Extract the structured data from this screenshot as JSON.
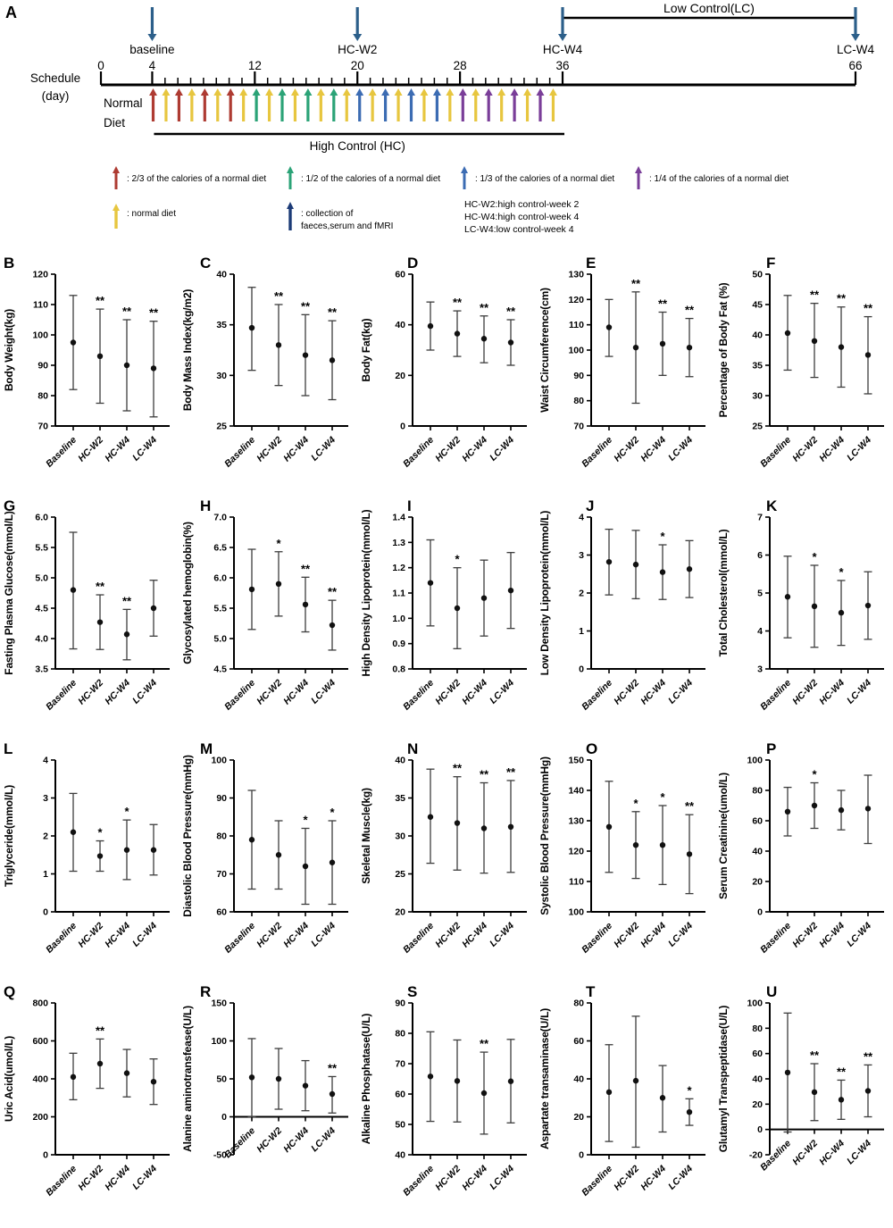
{
  "panel_a": {
    "letter": "A",
    "schedule_axis_label": [
      "Schedule",
      "(day)"
    ],
    "diet_row_label": [
      "Normal",
      "Diet"
    ],
    "axis_day_labels": [
      0,
      4,
      12,
      20,
      28,
      36,
      66
    ],
    "timepoints": [
      {
        "text": "baseline",
        "day": 4
      },
      {
        "text": "HC-W2",
        "day": 20
      },
      {
        "text": "HC-W4",
        "day": 36
      },
      {
        "text": "LC-W4",
        "day": 66
      }
    ],
    "collection_arrow_days": [
      4,
      20,
      36,
      66
    ],
    "low_control_span": {
      "label": "Low Control(LC)",
      "from_day": 36,
      "to_day": 66
    },
    "high_control_span": {
      "label": "High Control  (HC)",
      "from_day": 4,
      "to_day": 36
    },
    "week_arrow_colors": [
      "red",
      "green",
      "blue",
      "purple"
    ],
    "arrows_per_week": 4,
    "alternate_with": "yellow",
    "legend_row1": [
      {
        "color": "red",
        "label": ":  2/3 of the calories of a normal diet"
      },
      {
        "color": "green",
        "label": ":  1/2 of the calories of a normal diet"
      },
      {
        "color": "blue",
        "label": ":  1/3 of the calories of a normal diet"
      },
      {
        "color": "purple",
        "label": ":  1/4 of the calories of a normal diet"
      }
    ],
    "legend_row2": [
      {
        "color": "yellow",
        "lines": [
          ":  normal diet"
        ]
      },
      {
        "color": "navy",
        "lines": [
          ":  collection of",
          "faeces,serum and fMRI"
        ]
      }
    ],
    "abbreviations": [
      "HC-W2:high control-week 2",
      "HC-W4:high control-week 4",
      "LC-W4:low control-week 4"
    ]
  },
  "colors": {
    "red": "#ae3b32",
    "yellow": "#e7c63f",
    "green": "#2ba377",
    "blue": "#3c6cb3",
    "purple": "#7a3e99",
    "navy": "#1c3b77",
    "steel": "#2c5f8a",
    "error_bar": "#3d3d3d",
    "point": "#111111",
    "axis": "#000000"
  },
  "chart_data": {
    "type": "scatter",
    "legend_position": "none",
    "grid": false,
    "categories": [
      "Baseline",
      "HC-W2",
      "HC-W4",
      "LC-W4"
    ],
    "panels": [
      {
        "id": "B",
        "ylabel": "Body Weight(kg)",
        "ylim": [
          70,
          120
        ],
        "ystep": 10,
        "dec": 0,
        "points": [
          {
            "mean": 97.5,
            "lo": 82,
            "hi": 113,
            "sig": ""
          },
          {
            "mean": 93,
            "lo": 77.5,
            "hi": 108.5,
            "sig": "**"
          },
          {
            "mean": 90,
            "lo": 75,
            "hi": 105,
            "sig": "**"
          },
          {
            "mean": 89,
            "lo": 73,
            "hi": 104.5,
            "sig": "**"
          }
        ]
      },
      {
        "id": "C",
        "ylabel": "Body Mass Index(kg/m2)",
        "ylim": [
          25,
          40
        ],
        "ystep": 5,
        "dec": 0,
        "points": [
          {
            "mean": 34.7,
            "lo": 30.5,
            "hi": 38.7,
            "sig": ""
          },
          {
            "mean": 33,
            "lo": 29,
            "hi": 37,
            "sig": "**"
          },
          {
            "mean": 32,
            "lo": 28,
            "hi": 36,
            "sig": "**"
          },
          {
            "mean": 31.5,
            "lo": 27.6,
            "hi": 35.4,
            "sig": "**"
          }
        ]
      },
      {
        "id": "D",
        "ylabel": "Body Fat(kg)",
        "ylim": [
          0,
          60
        ],
        "ystep": 20,
        "dec": 0,
        "points": [
          {
            "mean": 39.5,
            "lo": 30,
            "hi": 49,
            "sig": ""
          },
          {
            "mean": 36.5,
            "lo": 27.5,
            "hi": 45.5,
            "sig": "**"
          },
          {
            "mean": 34.5,
            "lo": 25,
            "hi": 43.5,
            "sig": "**"
          },
          {
            "mean": 33,
            "lo": 24,
            "hi": 42,
            "sig": "**"
          }
        ]
      },
      {
        "id": "E",
        "ylabel": "Waist Circumference(cm)",
        "ylim": [
          70,
          130
        ],
        "ystep": 10,
        "dec": 0,
        "points": [
          {
            "mean": 109,
            "lo": 97.5,
            "hi": 120,
            "sig": ""
          },
          {
            "mean": 101,
            "lo": 79,
            "hi": 123,
            "sig": "**"
          },
          {
            "mean": 102.5,
            "lo": 90,
            "hi": 115,
            "sig": "**"
          },
          {
            "mean": 101,
            "lo": 89.5,
            "hi": 112.5,
            "sig": "**"
          }
        ]
      },
      {
        "id": "F",
        "ylabel": "Percentage of Body Fat (%)",
        "ylim": [
          25,
          50
        ],
        "ystep": 5,
        "dec": 0,
        "points": [
          {
            "mean": 40.3,
            "lo": 34.2,
            "hi": 46.5,
            "sig": ""
          },
          {
            "mean": 39,
            "lo": 33,
            "hi": 45.2,
            "sig": "**"
          },
          {
            "mean": 38,
            "lo": 31.4,
            "hi": 44.6,
            "sig": "**"
          },
          {
            "mean": 36.7,
            "lo": 30.3,
            "hi": 43,
            "sig": "**"
          }
        ]
      },
      {
        "id": "G",
        "ylabel": "Fasting Plasma Glucose(mmol/L)",
        "ylim": [
          3.5,
          6.0
        ],
        "ystep": 0.5,
        "dec": 1,
        "points": [
          {
            "mean": 4.8,
            "lo": 3.83,
            "hi": 5.75,
            "sig": ""
          },
          {
            "mean": 4.27,
            "lo": 3.82,
            "hi": 4.72,
            "sig": "**"
          },
          {
            "mean": 4.07,
            "lo": 3.65,
            "hi": 4.48,
            "sig": "**"
          },
          {
            "mean": 4.5,
            "lo": 4.04,
            "hi": 4.96,
            "sig": ""
          }
        ]
      },
      {
        "id": "H",
        "ylabel": "Glycosylated hemoglobin(%)",
        "ylim": [
          4.5,
          7.0
        ],
        "ystep": 0.5,
        "dec": 1,
        "points": [
          {
            "mean": 5.81,
            "lo": 5.15,
            "hi": 6.47,
            "sig": ""
          },
          {
            "mean": 5.9,
            "lo": 5.37,
            "hi": 6.43,
            "sig": "*"
          },
          {
            "mean": 5.56,
            "lo": 5.11,
            "hi": 6.01,
            "sig": "**"
          },
          {
            "mean": 5.22,
            "lo": 4.81,
            "hi": 5.63,
            "sig": "**"
          }
        ]
      },
      {
        "id": "I",
        "ylabel": "High Density Lipoprotein(mmol/L)",
        "ylim": [
          0.8,
          1.4
        ],
        "ystep": 0.1,
        "dec": 1,
        "points": [
          {
            "mean": 1.14,
            "lo": 0.97,
            "hi": 1.31,
            "sig": ""
          },
          {
            "mean": 1.04,
            "lo": 0.88,
            "hi": 1.2,
            "sig": "*"
          },
          {
            "mean": 1.08,
            "lo": 0.93,
            "hi": 1.23,
            "sig": ""
          },
          {
            "mean": 1.11,
            "lo": 0.96,
            "hi": 1.26,
            "sig": ""
          }
        ]
      },
      {
        "id": "J",
        "ylabel": "Low Density Lipoprotein(mmol/L)",
        "ylim": [
          0,
          4
        ],
        "ystep": 1,
        "dec": 0,
        "points": [
          {
            "mean": 2.82,
            "lo": 1.95,
            "hi": 3.68,
            "sig": ""
          },
          {
            "mean": 2.75,
            "lo": 1.85,
            "hi": 3.65,
            "sig": ""
          },
          {
            "mean": 2.55,
            "lo": 1.83,
            "hi": 3.27,
            "sig": "*"
          },
          {
            "mean": 2.63,
            "lo": 1.88,
            "hi": 3.38,
            "sig": ""
          }
        ]
      },
      {
        "id": "K",
        "ylabel": "Total Cholesterol(mmol/L)",
        "ylim": [
          3,
          7
        ],
        "ystep": 1,
        "dec": 0,
        "points": [
          {
            "mean": 4.9,
            "lo": 3.82,
            "hi": 5.97,
            "sig": ""
          },
          {
            "mean": 4.65,
            "lo": 3.57,
            "hi": 5.73,
            "sig": "*"
          },
          {
            "mean": 4.48,
            "lo": 3.62,
            "hi": 5.33,
            "sig": "*"
          },
          {
            "mean": 4.67,
            "lo": 3.78,
            "hi": 5.56,
            "sig": ""
          }
        ]
      },
      {
        "id": "L",
        "ylabel": "Triglyceride(mmol/L)",
        "ylim": [
          0,
          4
        ],
        "ystep": 1,
        "dec": 0,
        "points": [
          {
            "mean": 2.1,
            "lo": 1.07,
            "hi": 3.12,
            "sig": ""
          },
          {
            "mean": 1.47,
            "lo": 1.07,
            "hi": 1.87,
            "sig": "*"
          },
          {
            "mean": 1.63,
            "lo": 0.85,
            "hi": 2.42,
            "sig": "*"
          },
          {
            "mean": 1.63,
            "lo": 0.97,
            "hi": 2.3,
            "sig": ""
          }
        ]
      },
      {
        "id": "M",
        "ylabel": "Diastolic Blood Pressure(mmHg)",
        "ylim": [
          60,
          100
        ],
        "ystep": 10,
        "dec": 0,
        "points": [
          {
            "mean": 79,
            "lo": 66,
            "hi": 92,
            "sig": ""
          },
          {
            "mean": 75,
            "lo": 66,
            "hi": 84,
            "sig": ""
          },
          {
            "mean": 72,
            "lo": 62,
            "hi": 82,
            "sig": "*"
          },
          {
            "mean": 73,
            "lo": 62,
            "hi": 84,
            "sig": "*"
          }
        ]
      },
      {
        "id": "N",
        "ylabel": "Skeletal Muscle(kg)",
        "ylim": [
          20,
          40
        ],
        "ystep": 5,
        "dec": 0,
        "points": [
          {
            "mean": 32.5,
            "lo": 26.4,
            "hi": 38.8,
            "sig": ""
          },
          {
            "mean": 31.7,
            "lo": 25.5,
            "hi": 37.8,
            "sig": "**"
          },
          {
            "mean": 31,
            "lo": 25.1,
            "hi": 37,
            "sig": "**"
          },
          {
            "mean": 31.2,
            "lo": 25.2,
            "hi": 37.3,
            "sig": "**"
          }
        ]
      },
      {
        "id": "O",
        "ylabel": "Systolic Blood  Pressure(mmHg)",
        "ylim": [
          100,
          150
        ],
        "ystep": 10,
        "dec": 0,
        "points": [
          {
            "mean": 128,
            "lo": 113,
            "hi": 143,
            "sig": ""
          },
          {
            "mean": 122,
            "lo": 111,
            "hi": 133,
            "sig": "*"
          },
          {
            "mean": 122,
            "lo": 109,
            "hi": 135,
            "sig": "*"
          },
          {
            "mean": 119,
            "lo": 106,
            "hi": 132,
            "sig": "**"
          }
        ]
      },
      {
        "id": "P",
        "ylabel": "Serum Creatinine(umol/L)",
        "ylim": [
          0,
          100
        ],
        "ystep": 20,
        "dec": 0,
        "points": [
          {
            "mean": 66,
            "lo": 50,
            "hi": 82,
            "sig": ""
          },
          {
            "mean": 70,
            "lo": 55,
            "hi": 85,
            "sig": "*"
          },
          {
            "mean": 67,
            "lo": 54,
            "hi": 80,
            "sig": ""
          },
          {
            "mean": 68,
            "lo": 45,
            "hi": 90,
            "sig": ""
          }
        ]
      },
      {
        "id": "Q",
        "ylabel": "Uric Acid(umol/L)",
        "ylim": [
          0,
          800
        ],
        "ystep": 200,
        "dec": 0,
        "points": [
          {
            "mean": 410,
            "lo": 290,
            "hi": 535,
            "sig": ""
          },
          {
            "mean": 480,
            "lo": 350,
            "hi": 610,
            "sig": "**"
          },
          {
            "mean": 430,
            "lo": 305,
            "hi": 555,
            "sig": ""
          },
          {
            "mean": 385,
            "lo": 265,
            "hi": 505,
            "sig": ""
          }
        ]
      },
      {
        "id": "R",
        "ylabel": "Alanine aminotransfease(U/L)",
        "ylim": [
          -50,
          150
        ],
        "ystep": 50,
        "dec": 0,
        "axis_at": 0,
        "points": [
          {
            "mean": 52,
            "lo": 0,
            "hi": 103,
            "sig": ""
          },
          {
            "mean": 50,
            "lo": 10,
            "hi": 90,
            "sig": ""
          },
          {
            "mean": 41,
            "lo": 8,
            "hi": 74,
            "sig": ""
          },
          {
            "mean": 30,
            "lo": 5,
            "hi": 53,
            "sig": "**"
          }
        ]
      },
      {
        "id": "S",
        "ylabel": "Alkaline Phosphatase(U/L)",
        "ylim": [
          40,
          90
        ],
        "ystep": 10,
        "dec": 0,
        "points": [
          {
            "mean": 65.8,
            "lo": 51,
            "hi": 80.5,
            "sig": ""
          },
          {
            "mean": 64.3,
            "lo": 50.8,
            "hi": 77.8,
            "sig": ""
          },
          {
            "mean": 60.3,
            "lo": 46.8,
            "hi": 73.8,
            "sig": "**"
          },
          {
            "mean": 64.2,
            "lo": 50.5,
            "hi": 78,
            "sig": ""
          }
        ]
      },
      {
        "id": "T",
        "ylabel": "Aspartate  transaminase(U/L)",
        "ylim": [
          0,
          80
        ],
        "ystep": 20,
        "dec": 0,
        "points": [
          {
            "mean": 33,
            "lo": 7,
            "hi": 58,
            "sig": ""
          },
          {
            "mean": 39,
            "lo": 4,
            "hi": 73,
            "sig": ""
          },
          {
            "mean": 30,
            "lo": 12,
            "hi": 47,
            "sig": ""
          },
          {
            "mean": 22.5,
            "lo": 15.5,
            "hi": 29.5,
            "sig": "*"
          }
        ]
      },
      {
        "id": "U",
        "ylabel": "Glutamyl Transpeptidase(U/L)",
        "ylim": [
          -20,
          100
        ],
        "ystep": 20,
        "dec": 0,
        "axis_at": 0,
        "points": [
          {
            "mean": 45,
            "lo": -2,
            "hi": 92,
            "sig": ""
          },
          {
            "mean": 29.5,
            "lo": 7,
            "hi": 52,
            "sig": "**"
          },
          {
            "mean": 23.5,
            "lo": 8,
            "hi": 39,
            "sig": "**"
          },
          {
            "mean": 30.5,
            "lo": 10,
            "hi": 51,
            "sig": "**"
          }
        ]
      }
    ]
  }
}
